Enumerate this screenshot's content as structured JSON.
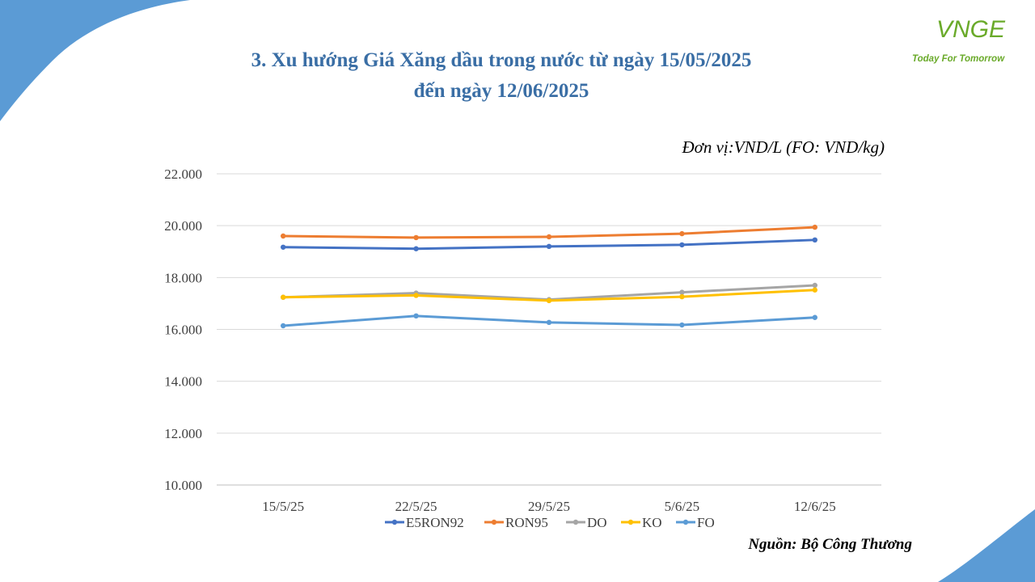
{
  "page": {
    "title_line1": "3. Xu hướng Giá Xăng dầu trong nước từ ngày 15/05/2025",
    "title_line2": "đến ngày 12/06/2025",
    "unit": "Đơn vị:VND/L (FO: VND/kg)",
    "source": "Nguồn: Bộ Công Thương"
  },
  "logo": {
    "mark": "VNGE",
    "tagline": "Today For Tomorrow",
    "color": "#6aaa2a"
  },
  "colors": {
    "title": "#3a6ea5",
    "decoration": "#5b9bd5"
  },
  "chart_data": {
    "type": "line",
    "categories": [
      "15/5/25",
      "22/5/25",
      "29/5/25",
      "5/6/25",
      "12/6/25"
    ],
    "y_ticks": [
      "10.000",
      "12.000",
      "14.000",
      "16.000",
      "18.000",
      "20.000",
      "22.000"
    ],
    "ylim": [
      10000,
      22000
    ],
    "grid": true,
    "legend_position": "bottom",
    "series": [
      {
        "name": "E5RON92",
        "color": "#4472c4",
        "values": [
          19170,
          19110,
          19200,
          19260,
          19450
        ]
      },
      {
        "name": "RON95",
        "color": "#ed7d31",
        "values": [
          19600,
          19540,
          19570,
          19690,
          19940
        ]
      },
      {
        "name": "DO",
        "color": "#a5a5a5",
        "values": [
          17240,
          17400,
          17150,
          17430,
          17700
        ]
      },
      {
        "name": "KO",
        "color": "#ffc000",
        "values": [
          17240,
          17310,
          17110,
          17260,
          17520
        ]
      },
      {
        "name": "FO",
        "color": "#5b9bd5",
        "values": [
          16140,
          16520,
          16270,
          16170,
          16460
        ]
      }
    ]
  }
}
